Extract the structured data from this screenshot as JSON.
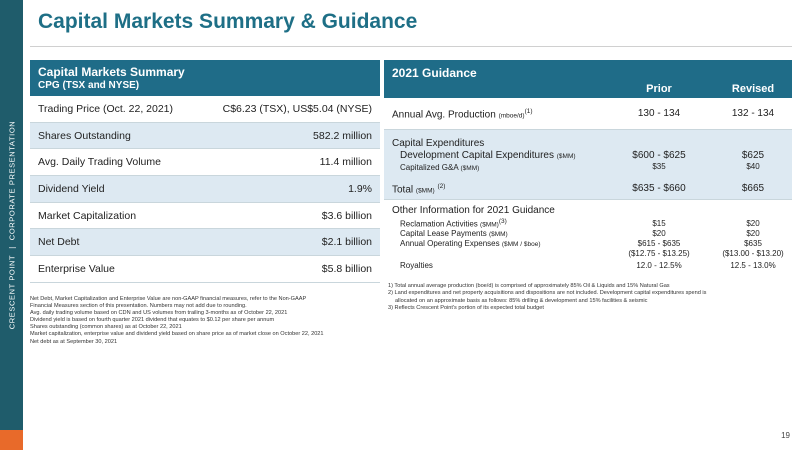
{
  "side": {
    "left": "CRESCENT POINT",
    "sep": "|",
    "right": "CORPORATE PRESENTATION"
  },
  "title": "Capital Markets Summary & Guidance",
  "summary": {
    "heading": "Capital Markets Summary",
    "subheading": "CPG (TSX and NYSE)",
    "rows": [
      {
        "label": "Trading Price (Oct. 22, 2021)",
        "value": "C$6.23 (TSX), US$5.04 (NYSE)"
      },
      {
        "label": "Shares Outstanding",
        "value": "582.2 million"
      },
      {
        "label": "Avg. Daily Trading Volume",
        "value": "11.4 million"
      },
      {
        "label": "Dividend Yield",
        "value": "1.9%"
      },
      {
        "label": "Market Capitalization",
        "value": "$3.6 billion"
      },
      {
        "label": "Net Debt",
        "value": "$2.1 billion"
      },
      {
        "label": "Enterprise Value",
        "value": "$5.8 billion"
      }
    ],
    "notes": [
      "Net Debt, Market Capitalization and Enterprise Value are non-GAAP financial measures, refer to the Non-GAAP",
      "Financial Measures section of this presentation. Numbers may not add due to rounding.",
      "Avg. daily trading volume based on CDN and US volumes from trailing 3-months as of October 22, 2021",
      "Dividend yield is based on fourth quarter 2021 dividend that equates to $0.12 per share per annum",
      "Shares outstanding (common shares) as at October 22, 2021",
      "Market capitalization, enterprise value and dividend yield based on share price as of market close on October 22, 2021",
      "Net debt as at September 30, 2021"
    ]
  },
  "guidance": {
    "heading": "2021 Guidance",
    "col_prior": "Prior",
    "col_revised": "Revised",
    "production": {
      "label": "Annual Avg. Production",
      "unit": "(mboe/d)",
      "sup": "(1)",
      "prior": "130 - 134",
      "revised": "132 - 134"
    },
    "capex": {
      "label": "Capital Expenditures",
      "dev_label": "Development Capital Expenditures",
      "dev_unit": "($MM)",
      "dev_prior": "$600 - $625",
      "dev_revised": "$625",
      "ga_label": "Capitalized G&A",
      "ga_unit": "($MM)",
      "ga_prior": "$35",
      "ga_revised": "$40",
      "total_label": "Total",
      "total_unit": "($MM)",
      "total_sup": "(2)",
      "total_prior": "$635 - $660",
      "total_revised": "$665"
    },
    "other": {
      "label": "Other Information for 2021 Guidance",
      "rec_label": "Reclamation Activities",
      "rec_unit": "($MM)",
      "rec_sup": "(3)",
      "rec_prior": "$15",
      "rec_revised": "$20",
      "lease_label": "Capital Lease Payments",
      "lease_unit": "($MM)",
      "lease_prior": "$20",
      "lease_revised": "$20",
      "opex_label": "Annual Operating Expenses",
      "opex_unit": "($MM / $boe)",
      "opex_prior": "$615 - $635",
      "opex_revised": "$635",
      "opex_prior2": "($12.75 - $13.25)",
      "opex_revised2": "($13.00 - $13.20)",
      "roy_label": "Royalties",
      "roy_prior": "12.0 - 12.5%",
      "roy_revised": "12.5 - 13.0%"
    },
    "notes": {
      "n1": "1) Total annual average production (boe/d) is comprised of approximately 85% Oil & Liquids and 15% Natural Gas",
      "n2a": "2) Land expenditures and net property acquisitions and dispositions are not included. Development capital expenditures spend is",
      "n2b": "allocated on an approximate basis as follows: 85% drilling & development and 15% facilities & seismic",
      "n3": "3) Reflects Crescent Point's portion of its expected total budget"
    }
  },
  "page_number": "19"
}
